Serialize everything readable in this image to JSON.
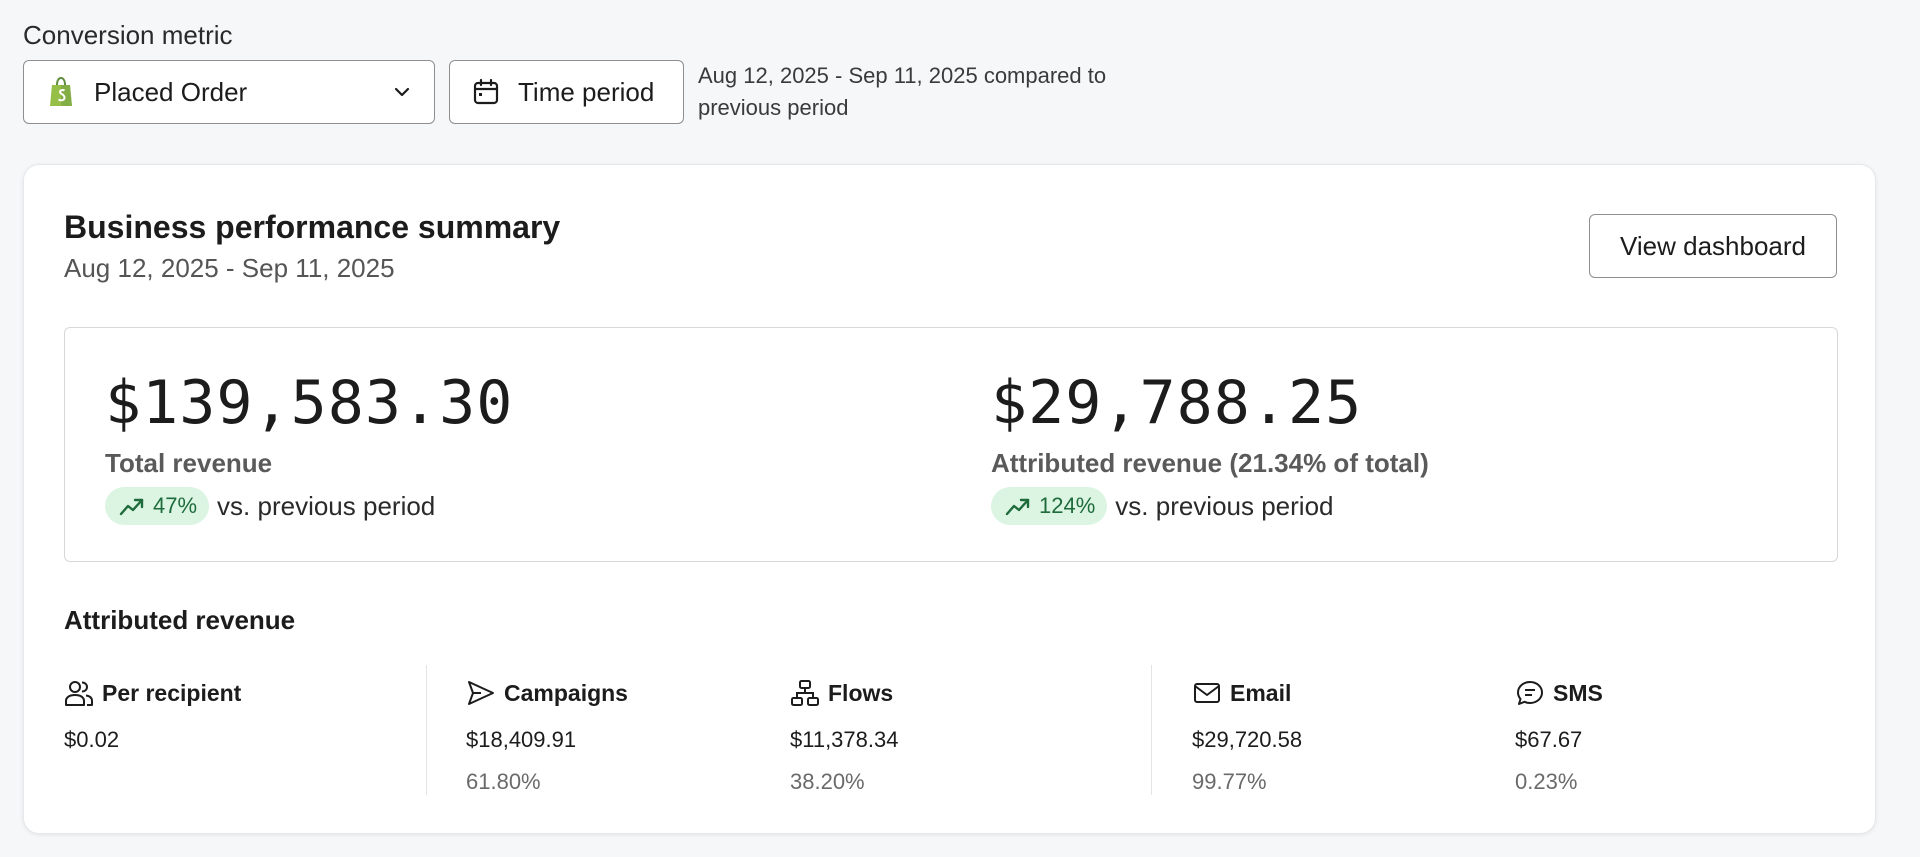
{
  "filters": {
    "metric_label": "Conversion metric",
    "metric_value": "Placed Order",
    "time_button": "Time period",
    "period_text": "Aug 12, 2025 - Sep 11, 2025 compared to previous period"
  },
  "summary": {
    "title": "Business performance summary",
    "date_range": "Aug 12, 2025 - Sep 11, 2025",
    "view_button": "View dashboard",
    "total": {
      "value": "$139,583.30",
      "label": "Total revenue",
      "change": "47%",
      "change_suffix": "vs. previous period"
    },
    "attributed": {
      "value": "$29,788.25",
      "label": "Attributed revenue (21.34% of total)",
      "change": "124%",
      "change_suffix": "vs. previous period"
    }
  },
  "attributed_revenue": {
    "title": "Attributed revenue",
    "per_recipient": {
      "label": "Per recipient",
      "amount": "$0.02"
    },
    "campaigns": {
      "label": "Campaigns",
      "amount": "$18,409.91",
      "pct": "61.80%"
    },
    "flows": {
      "label": "Flows",
      "amount": "$11,378.34",
      "pct": "38.20%"
    },
    "email": {
      "label": "Email",
      "amount": "$29,720.58",
      "pct": "99.77%"
    },
    "sms": {
      "label": "SMS",
      "amount": "$67.67",
      "pct": "0.23%"
    }
  },
  "colors": {
    "positive_bg": "#dcf5e3",
    "positive_fg": "#1e6b3c",
    "shopify_green": "#95bf47"
  },
  "icons": [
    "shopify-bag-icon",
    "chevron-down-icon",
    "calendar-icon",
    "trend-up-icon",
    "people-icon",
    "send-icon",
    "flow-icon",
    "mail-icon",
    "sms-icon"
  ]
}
